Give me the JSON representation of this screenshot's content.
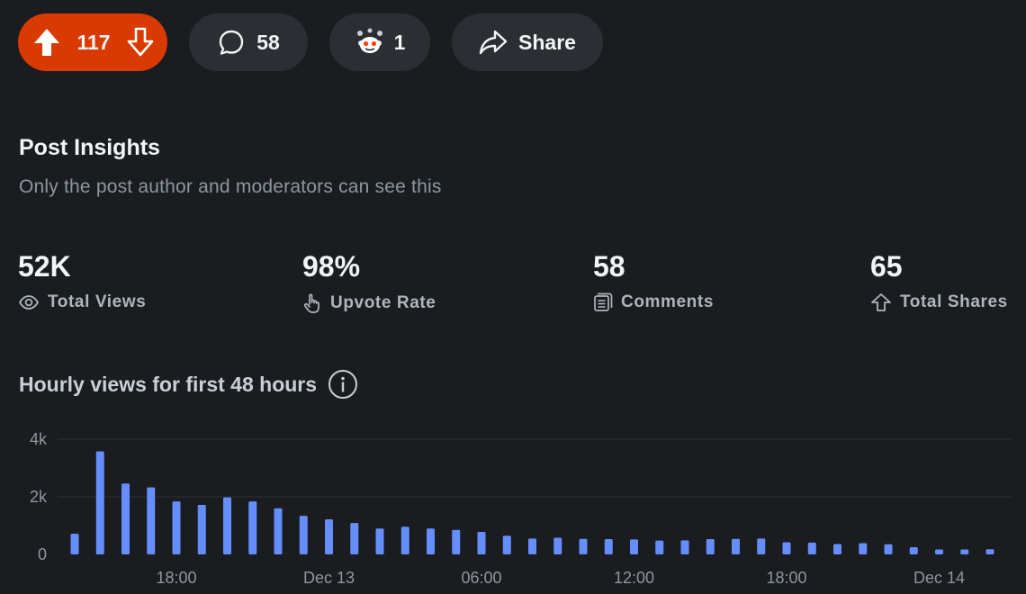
{
  "actions": {
    "vote_count": "117",
    "comment_count": "58",
    "award_count": "1",
    "share_label": "Share"
  },
  "insights": {
    "title": "Post Insights",
    "subtitle": "Only the post author and moderators can see this"
  },
  "stats": [
    {
      "value": "52K",
      "label": "Total Views",
      "icon": "eye-icon"
    },
    {
      "value": "98%",
      "label": "Upvote Rate",
      "icon": "hand-pointer-icon"
    },
    {
      "value": "58",
      "label": "Comments",
      "icon": "comments-icon"
    },
    {
      "value": "65",
      "label": "Total Shares",
      "icon": "share-arrow-icon"
    }
  ],
  "chart_title": "Hourly views for first 48 hours",
  "colors": {
    "background": "#1a1c20",
    "vote_accent": "#d93a00",
    "pill_bg": "#2b2f33",
    "bar": "#648efc",
    "grid": "#2d3034",
    "muted_text": "#8d979e"
  },
  "chart_data": {
    "type": "bar",
    "title": "Hourly views for first 48 hours",
    "ylim": [
      0,
      4000
    ],
    "grid": true,
    "y_ticks": [
      {
        "value": 4000,
        "label": "4k"
      },
      {
        "value": 2000,
        "label": "2k"
      },
      {
        "value": 0,
        "label": "0"
      }
    ],
    "x_ticks": [
      {
        "index": 4,
        "label": "18:00"
      },
      {
        "index": 10,
        "label": "Dec 13"
      },
      {
        "index": 16,
        "label": "06:00"
      },
      {
        "index": 22,
        "label": "12:00"
      },
      {
        "index": 28,
        "label": "18:00"
      },
      {
        "index": 34,
        "label": "Dec 14"
      }
    ],
    "values": [
      720,
      3580,
      2460,
      2330,
      1840,
      1720,
      1980,
      1840,
      1600,
      1340,
      1220,
      1090,
      900,
      960,
      900,
      850,
      780,
      650,
      550,
      580,
      540,
      530,
      520,
      480,
      490,
      530,
      540,
      550,
      420,
      410,
      360,
      390,
      350,
      250,
      170,
      170,
      180
    ]
  }
}
